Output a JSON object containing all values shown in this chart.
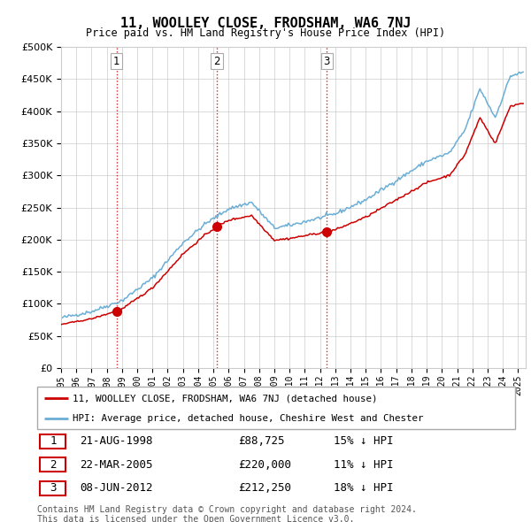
{
  "title": "11, WOOLLEY CLOSE, FRODSHAM, WA6 7NJ",
  "subtitle": "Price paid vs. HM Land Registry's House Price Index (HPI)",
  "ylim": [
    0,
    500000
  ],
  "yticks": [
    0,
    50000,
    100000,
    150000,
    200000,
    250000,
    300000,
    350000,
    400000,
    450000,
    500000
  ],
  "hpi_color": "#6baed6",
  "price_color": "#cc0000",
  "marker_color": "#cc0000",
  "dashed_color": "#cc0000",
  "transaction_times": [
    1998.6389,
    2005.2222,
    2012.4444
  ],
  "transaction_prices": [
    88725,
    220000,
    212250
  ],
  "transaction_labels": [
    "1",
    "2",
    "3"
  ],
  "legend_price_label": "11, WOOLLEY CLOSE, FRODSHAM, WA6 7NJ (detached house)",
  "legend_hpi_label": "HPI: Average price, detached house, Cheshire West and Chester",
  "table_rows": [
    [
      "1",
      "21-AUG-1998",
      "£88,725",
      "15% ↓ HPI"
    ],
    [
      "2",
      "22-MAR-2005",
      "£220,000",
      "11% ↓ HPI"
    ],
    [
      "3",
      "08-JUN-2012",
      "£212,250",
      "18% ↓ HPI"
    ]
  ],
  "footer_text": "Contains HM Land Registry data © Crown copyright and database right 2024.\nThis data is licensed under the Open Government Licence v3.0.",
  "background_color": "#ffffff",
  "grid_color": "#cccccc",
  "hpi_anchor_x": [
    1995.0,
    1997.0,
    1999.0,
    2001.0,
    2003.0,
    2004.5,
    2006.0,
    2007.5,
    2009.0,
    2010.0,
    2011.0,
    2013.0,
    2015.0,
    2017.0,
    2019.0,
    2020.5,
    2021.5,
    2022.5,
    2023.5,
    2024.5,
    2025.3
  ],
  "hpi_anchor_y": [
    78000,
    88000,
    105000,
    140000,
    195000,
    225000,
    248000,
    258000,
    218000,
    222000,
    228000,
    240000,
    262000,
    292000,
    322000,
    335000,
    370000,
    435000,
    390000,
    455000,
    460000
  ]
}
